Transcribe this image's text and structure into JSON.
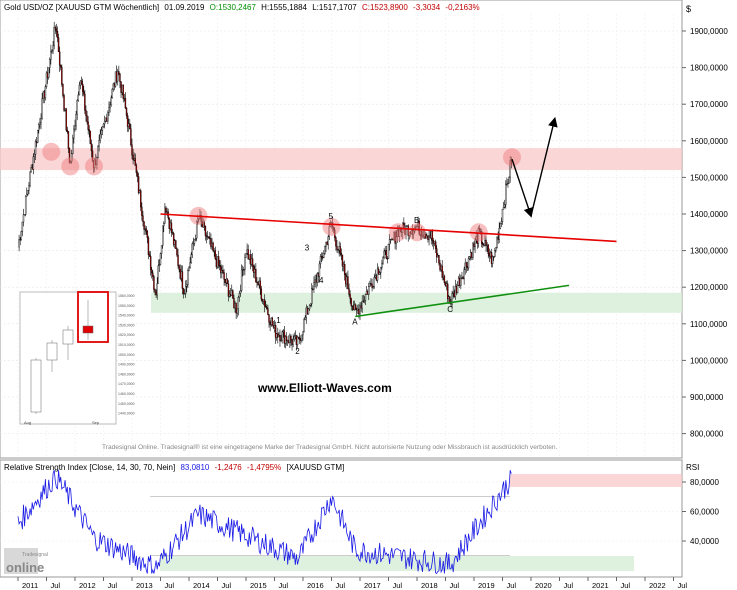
{
  "header": {
    "instrument": "Gold USD/OZ [XAUUSD GTM Wöchentlich]",
    "date": "01.09.2019",
    "open": "O:1530,2467",
    "high": "H:1555,1884",
    "low": "L:1517,1707",
    "close": "C:1523,8900",
    "change": "-3,3034",
    "change_pct": "-0,2163%"
  },
  "price_axis": {
    "currency": "$",
    "ticks": [
      "1900,0000",
      "1800,0000",
      "1700,0000",
      "1600,0000",
      "1500,0000",
      "1400,0000",
      "1300,0000",
      "1200,0000",
      "1100,0000",
      "1000,0000",
      "900,0000",
      "800,0000"
    ]
  },
  "rsi_panel": {
    "header": "Relative Strength Index [Close, 14, 30, 70, Nein]",
    "value": "83,0810",
    "change": "-1,2476",
    "change_pct": "-1,4795%",
    "instrument": "[XAUUSD GTM]",
    "axis_title": "RSI",
    "ticks": [
      "80,0000",
      "60,0000",
      "40,0000"
    ]
  },
  "time_axis": {
    "labels": [
      "2011",
      "Jul",
      "2012",
      "Jul",
      "2013",
      "Jul",
      "2014",
      "Jul",
      "2015",
      "Jul",
      "2016",
      "Jul",
      "2017",
      "Jul",
      "2018",
      "Jul",
      "2019",
      "Jul",
      "2020",
      "Jul",
      "2021",
      "Jul",
      "2022",
      "Jul"
    ]
  },
  "inset": {
    "x_labels": [
      "Aug",
      "Sep"
    ],
    "y_ticks": [
      "1560,0000",
      "1550,0000",
      "1540,0000",
      "1530,0000",
      "1520,0000",
      "1510,0000",
      "1500,0000",
      "1490,0000",
      "1480,0000",
      "1470,0000",
      "1460,0000",
      "1450,0000",
      "1440,0000"
    ]
  },
  "wave_labels": {
    "w1": "1",
    "w2": "2",
    "w3": "3",
    "w4": "4",
    "w5": "5",
    "wA": "A",
    "wB": "B",
    "wC": "C"
  },
  "watermark": "www.Elliott-Waves.com",
  "disclaimer": "Tradesignal Online. Tradesignal® ist eine eingetragene Marke der Tradesignal GmbH. Nicht autorisierte Nutzung oder Missbrauch ist ausdrücklich verboten.",
  "logo": {
    "text": "online",
    "sub": "Tradesignal"
  },
  "colors": {
    "candle_up": "#ffffff",
    "candle_down": "#b40000",
    "resistance_line": "#e60000",
    "support_line": "#109010",
    "rsi_line": "#1a1ae6",
    "zone_red": "#f8c8c8",
    "zone_green": "#d8efd8"
  },
  "chart_data": {
    "type": "candlestick",
    "timeframe": "weekly",
    "instrument": "XAUUSD",
    "ylim": [
      800,
      1950
    ],
    "xlim": [
      "2011-01",
      "2022-12"
    ],
    "key_points": [
      {
        "date": "2011-01",
        "price": 1310
      },
      {
        "date": "2011-09",
        "price": 1920
      },
      {
        "date": "2011-12",
        "price": 1530
      },
      {
        "date": "2012-02",
        "price": 1780
      },
      {
        "date": "2012-05",
        "price": 1530
      },
      {
        "date": "2012-10",
        "price": 1795
      },
      {
        "date": "2012-12",
        "price": 1660
      },
      {
        "date": "2013-06",
        "price": 1180
      },
      {
        "date": "2013-08",
        "price": 1430
      },
      {
        "date": "2013-12",
        "price": 1190
      },
      {
        "date": "2014-03",
        "price": 1390
      },
      {
        "date": "2014-11",
        "price": 1140
      },
      {
        "date": "2015-01",
        "price": 1305
      },
      {
        "date": "2015-07",
        "price": 1080
      },
      {
        "date": "2015-12",
        "price": 1045
      },
      {
        "date": "2016-07",
        "price": 1375
      },
      {
        "date": "2016-12",
        "price": 1125
      },
      {
        "date": "2017-09",
        "price": 1355
      },
      {
        "date": "2018-01",
        "price": 1365
      },
      {
        "date": "2018-04",
        "price": 1340
      },
      {
        "date": "2018-08",
        "price": 1160
      },
      {
        "date": "2019-02",
        "price": 1345
      },
      {
        "date": "2019-05",
        "price": 1270
      },
      {
        "date": "2019-09",
        "price": 1555
      },
      {
        "date": "2019-09",
        "price": 1524
      }
    ],
    "rsi": {
      "levels": [
        30,
        70
      ],
      "ylim": [
        20,
        90
      ],
      "key_points": [
        {
          "date": "2011-01",
          "value": 52
        },
        {
          "date": "2011-09",
          "value": 84
        },
        {
          "date": "2012-05",
          "value": 42
        },
        {
          "date": "2013-06",
          "value": 22
        },
        {
          "date": "2014-03",
          "value": 58
        },
        {
          "date": "2015-12",
          "value": 28
        },
        {
          "date": "2016-07",
          "value": 70
        },
        {
          "date": "2016-12",
          "value": 34
        },
        {
          "date": "2018-08",
          "value": 24
        },
        {
          "date": "2019-09",
          "value": 83
        }
      ]
    },
    "annotations": {
      "resistance_line": [
        {
          "date": "2013-07",
          "price": 1400
        },
        {
          "date": "2021-07",
          "price": 1325
        }
      ],
      "support_line": [
        {
          "date": "2016-12",
          "price": 1120
        },
        {
          "date": "2020-09",
          "price": 1205
        }
      ],
      "resistance_zone": [
        1520,
        1580
      ],
      "support_zone": [
        1130,
        1185
      ],
      "circles": [
        {
          "date": "2011-08",
          "price": 1570
        },
        {
          "date": "2011-12",
          "price": 1530
        },
        {
          "date": "2012-05",
          "price": 1530
        },
        {
          "date": "2014-03",
          "price": 1395
        },
        {
          "date": "2016-07",
          "price": 1365
        },
        {
          "date": "2017-09",
          "price": 1350
        },
        {
          "date": "2018-01",
          "price": 1350
        },
        {
          "date": "2019-02",
          "price": 1350
        },
        {
          "date": "2019-09",
          "price": 1555
        }
      ],
      "projection": [
        {
          "date": "2019-09",
          "price": 1550
        },
        {
          "date": "2020-01",
          "price": 1395
        },
        {
          "date": "2020-06",
          "price": 1660
        }
      ],
      "wave_points": [
        {
          "label": "1",
          "date": "2015-08",
          "price": 1130
        },
        {
          "label": "2",
          "date": "2015-12",
          "price": 1045
        },
        {
          "label": "3",
          "date": "2016-02",
          "price": 1290
        },
        {
          "label": "4",
          "date": "2016-05",
          "price": 1200
        },
        {
          "label": "5",
          "date": "2016-07",
          "price": 1375
        },
        {
          "label": "A",
          "date": "2016-12",
          "price": 1125
        },
        {
          "label": "B",
          "date": "2018-01",
          "price": 1365
        },
        {
          "label": "C",
          "date": "2018-08",
          "price": 1160
        }
      ]
    }
  }
}
